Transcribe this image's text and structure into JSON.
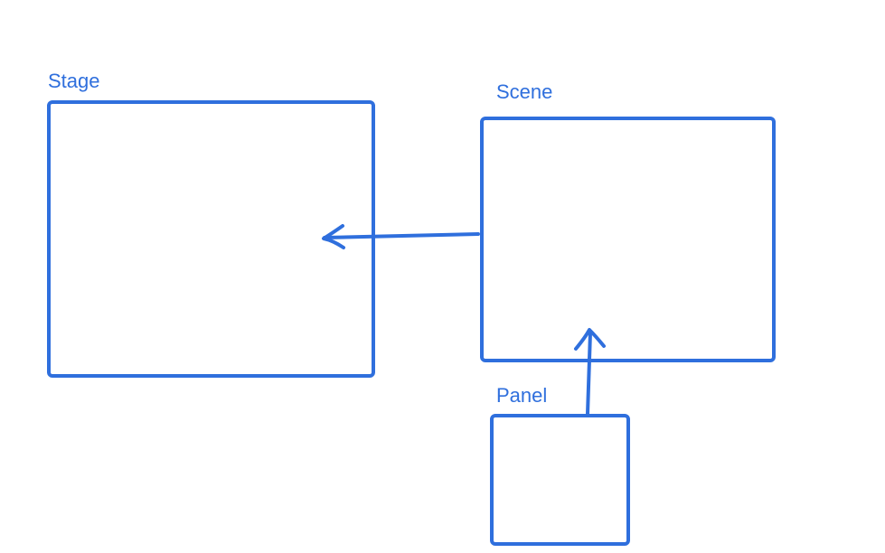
{
  "colors": {
    "accent": "#2f6fdd",
    "background": "#ffffff"
  },
  "nodes": {
    "stage": {
      "label": "Stage"
    },
    "scene": {
      "label": "Scene"
    },
    "panel": {
      "label": "Panel"
    }
  },
  "edges": [
    {
      "from": "scene",
      "to": "stage"
    },
    {
      "from": "panel",
      "to": "scene"
    }
  ]
}
